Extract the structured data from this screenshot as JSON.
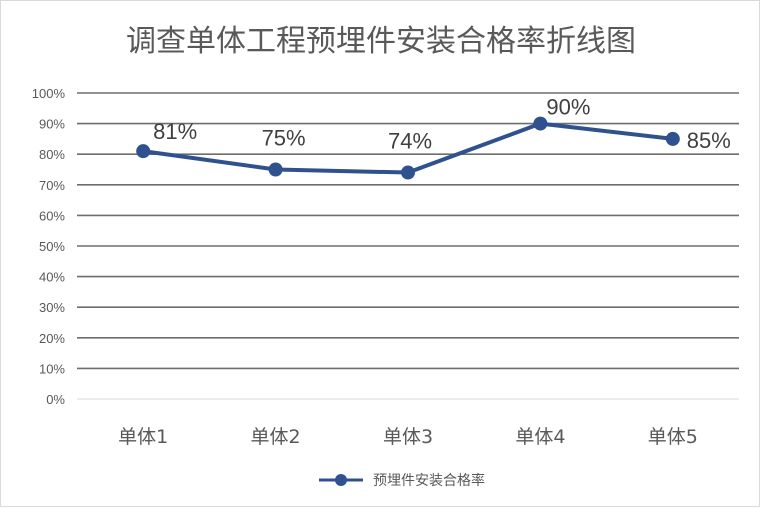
{
  "chart_data": {
    "type": "line",
    "title": "调查单体工程预埋件安装合格率折线图",
    "categories": [
      "单体1",
      "单体2",
      "单体3",
      "单体4",
      "单体5"
    ],
    "series": [
      {
        "name": "预埋件安装合格率",
        "values": [
          81,
          75,
          74,
          90,
          85
        ],
        "color": "#2f528f"
      }
    ],
    "data_labels": [
      "81%",
      "75%",
      "74%",
      "90%",
      "85%"
    ],
    "ylim": [
      0,
      100
    ],
    "yticks": [
      0,
      10,
      20,
      30,
      40,
      50,
      60,
      70,
      80,
      90,
      100
    ],
    "ytick_labels": [
      "0%",
      "10%",
      "20%",
      "30%",
      "40%",
      "50%",
      "60%",
      "70%",
      "80%",
      "90%",
      "100%"
    ],
    "grid": true,
    "legend_position": "bottom",
    "xlabel": "",
    "ylabel": ""
  }
}
